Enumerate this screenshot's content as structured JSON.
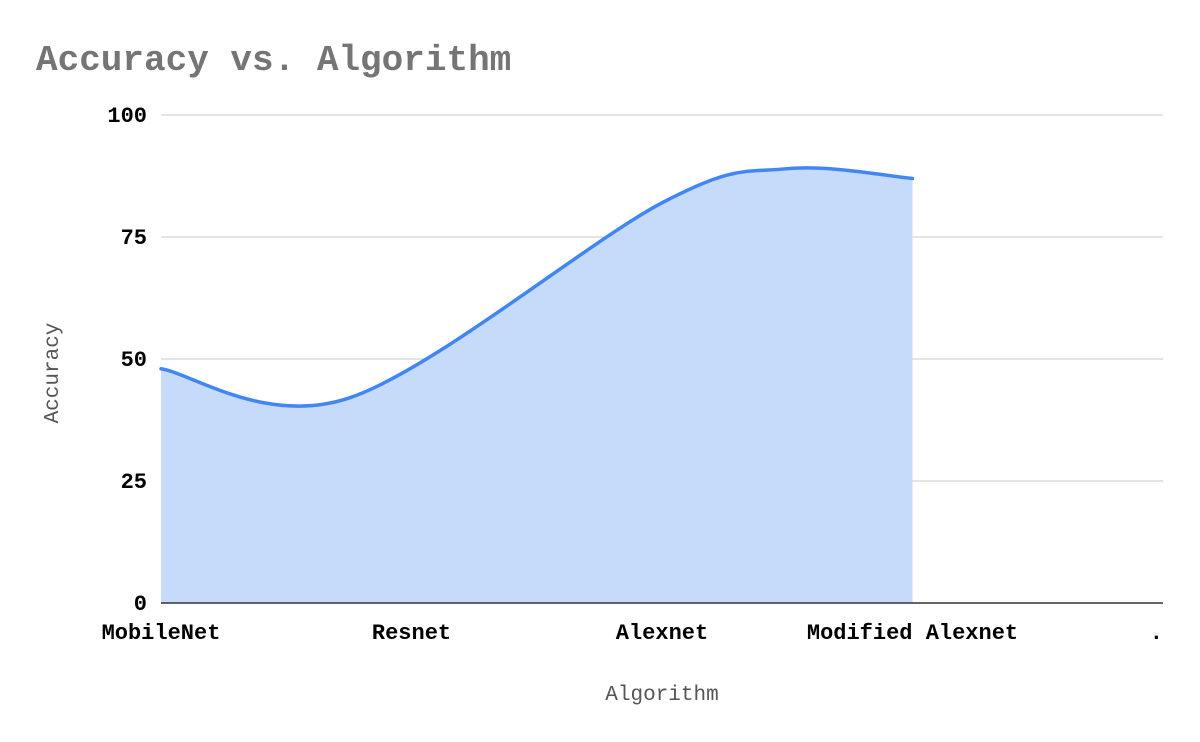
{
  "chart_data": {
    "type": "area",
    "title": "Accuracy vs. Algorithm",
    "xlabel": "Algorithm",
    "ylabel": "Accuracy",
    "categories": [
      "MobileNet",
      "Resnet",
      "Alexnet",
      "Modified Alexnet",
      "."
    ],
    "series": [
      {
        "values": [
          48,
          42,
          82,
          89,
          87
        ],
        "color": "#4285f4",
        "fill_color": "#c6daf9"
      }
    ],
    "ylim": [
      0,
      100
    ],
    "yticks": [
      0,
      25,
      50,
      75,
      100
    ],
    "grid": true,
    "legend": "none"
  }
}
